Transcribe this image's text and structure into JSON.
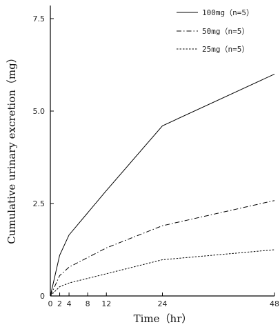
{
  "chart_data": {
    "type": "line",
    "xlabel": "Time（hr）",
    "ylabel": "Cumulative urinary excretion（mg）",
    "x": [
      0,
      2,
      4,
      12,
      24,
      48
    ],
    "xticks": [
      "0",
      "2",
      "4",
      "8",
      "12",
      "24",
      "48"
    ],
    "xtick_values": [
      0,
      2,
      4,
      8,
      12,
      24,
      48
    ],
    "yticks": [
      "0",
      "2.5",
      "5.0",
      "7.5"
    ],
    "ytick_values": [
      0,
      2.5,
      5.0,
      7.5
    ],
    "xlim": [
      0,
      48
    ],
    "ylim": [
      0,
      7.5
    ],
    "grid": false,
    "legend_position": "top-right",
    "series": [
      {
        "name": "100mg（n=5）",
        "dash": "solid",
        "values": [
          0,
          1.1,
          1.65,
          2.85,
          4.6,
          6.0
        ]
      },
      {
        "name": "50mg（n=5）",
        "dash": "dashdot",
        "values": [
          0,
          0.55,
          0.78,
          1.3,
          1.9,
          2.58
        ]
      },
      {
        "name": "25mg（n=5）",
        "dash": "dotted",
        "values": [
          0,
          0.25,
          0.35,
          0.6,
          0.98,
          1.25
        ]
      }
    ]
  }
}
